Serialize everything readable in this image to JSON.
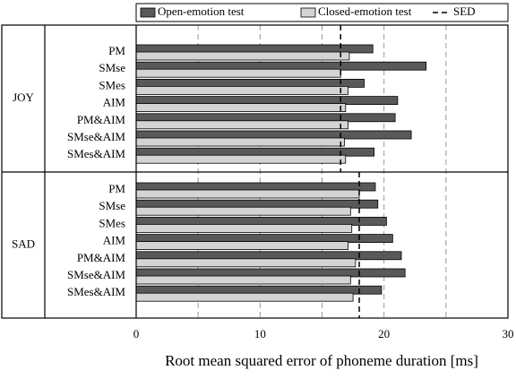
{
  "chart_data": {
    "type": "bar",
    "orientation": "horizontal",
    "xlabel": "Root mean squared error of phoneme duration [ms]",
    "xlim": [
      0,
      30
    ],
    "xticks": [
      0,
      10,
      20,
      30
    ],
    "grid_x": [
      5,
      10,
      15,
      20,
      25
    ],
    "series": [
      {
        "name": "Open-emotion test",
        "color": "#595959"
      },
      {
        "name": "Closed-emotion test",
        "color": "#d4d4d4"
      }
    ],
    "reference": {
      "name": "SED",
      "color": "#000000"
    },
    "groups": [
      {
        "label": "JOY",
        "categories": [
          "PM",
          "SMse",
          "SMes",
          "AIM",
          "PM&AIM",
          "SMse&AIM",
          "SMes&AIM"
        ],
        "series": [
          {
            "values": [
              19.1,
              23.4,
              18.4,
              21.1,
              20.9,
              22.2,
              19.2
            ]
          },
          {
            "values": [
              17.2,
              16.5,
              17.1,
              16.9,
              17.1,
              16.8,
              16.9
            ]
          }
        ],
        "reference": 16.5
      },
      {
        "label": "SAD",
        "categories": [
          "PM",
          "SMse",
          "SMes",
          "AIM",
          "PM&AIM",
          "SMse&AIM",
          "SMes&AIM"
        ],
        "series": [
          {
            "values": [
              19.3,
              19.5,
              20.2,
              20.7,
              21.4,
              21.7,
              19.8
            ]
          },
          {
            "values": [
              18.0,
              17.3,
              17.4,
              17.1,
              17.7,
              17.3,
              17.5
            ]
          }
        ],
        "reference": 18.0
      }
    ]
  }
}
